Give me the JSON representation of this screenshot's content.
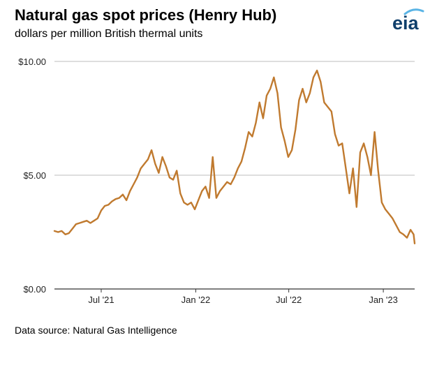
{
  "title": "Natural gas spot prices (Henry Hub)",
  "subtitle": "dollars per million British thermal units",
  "source": "Data source: Natural Gas Intelligence",
  "logo": {
    "text": "eia",
    "icon": "eia-logo-icon",
    "color": "#0f3f6b",
    "arc_color": "#5ab4e5"
  },
  "chart_data": {
    "type": "line",
    "title": "Natural gas spot prices (Henry Hub)",
    "subtitle": "dollars per million British thermal units",
    "xlabel": "",
    "ylabel": "",
    "x_range": [
      "2021-04-01",
      "2023-03-03"
    ],
    "ylim": [
      0,
      10
    ],
    "y_ticks": [
      {
        "value": 0,
        "label": "$0.00"
      },
      {
        "value": 5,
        "label": "$5.00"
      },
      {
        "value": 10,
        "label": "$10.00"
      }
    ],
    "x_ticks": [
      {
        "date": "2021-07-01",
        "label": "Jul '21"
      },
      {
        "date": "2022-01-01",
        "label": "Jan '22"
      },
      {
        "date": "2022-07-01",
        "label": "Jul '22"
      },
      {
        "date": "2023-01-01",
        "label": "Jan '23"
      }
    ],
    "grid": "horizontal",
    "color": "#c07a2f",
    "series": [
      {
        "values": [
          [
            "2021-04-01",
            2.55
          ],
          [
            "2021-04-08",
            2.5
          ],
          [
            "2021-04-15",
            2.55
          ],
          [
            "2021-04-22",
            2.4
          ],
          [
            "2021-04-29",
            2.45
          ],
          [
            "2021-05-06",
            2.65
          ],
          [
            "2021-05-13",
            2.85
          ],
          [
            "2021-05-20",
            2.9
          ],
          [
            "2021-05-27",
            2.95
          ],
          [
            "2021-06-03",
            3.0
          ],
          [
            "2021-06-10",
            2.9
          ],
          [
            "2021-06-17",
            3.0
          ],
          [
            "2021-06-24",
            3.1
          ],
          [
            "2021-07-01",
            3.45
          ],
          [
            "2021-07-08",
            3.65
          ],
          [
            "2021-07-15",
            3.7
          ],
          [
            "2021-07-22",
            3.85
          ],
          [
            "2021-07-29",
            3.95
          ],
          [
            "2021-08-05",
            4.0
          ],
          [
            "2021-08-12",
            4.15
          ],
          [
            "2021-08-19",
            3.9
          ],
          [
            "2021-08-26",
            4.3
          ],
          [
            "2021-09-02",
            4.6
          ],
          [
            "2021-09-09",
            4.9
          ],
          [
            "2021-09-16",
            5.3
          ],
          [
            "2021-09-23",
            5.5
          ],
          [
            "2021-09-30",
            5.7
          ],
          [
            "2021-10-07",
            6.1
          ],
          [
            "2021-10-14",
            5.5
          ],
          [
            "2021-10-21",
            5.1
          ],
          [
            "2021-10-28",
            5.8
          ],
          [
            "2021-11-04",
            5.4
          ],
          [
            "2021-11-11",
            4.9
          ],
          [
            "2021-11-18",
            4.8
          ],
          [
            "2021-11-25",
            5.2
          ],
          [
            "2021-12-02",
            4.2
          ],
          [
            "2021-12-09",
            3.8
          ],
          [
            "2021-12-16",
            3.7
          ],
          [
            "2021-12-23",
            3.8
          ],
          [
            "2021-12-30",
            3.5
          ],
          [
            "2022-01-06",
            3.9
          ],
          [
            "2022-01-13",
            4.3
          ],
          [
            "2022-01-20",
            4.5
          ],
          [
            "2022-01-27",
            4.0
          ],
          [
            "2022-02-03",
            5.8
          ],
          [
            "2022-02-10",
            4.0
          ],
          [
            "2022-02-17",
            4.3
          ],
          [
            "2022-02-24",
            4.5
          ],
          [
            "2022-03-03",
            4.7
          ],
          [
            "2022-03-10",
            4.6
          ],
          [
            "2022-03-17",
            4.9
          ],
          [
            "2022-03-24",
            5.3
          ],
          [
            "2022-03-31",
            5.6
          ],
          [
            "2022-04-07",
            6.2
          ],
          [
            "2022-04-14",
            6.9
          ],
          [
            "2022-04-21",
            6.7
          ],
          [
            "2022-04-28",
            7.3
          ],
          [
            "2022-05-05",
            8.2
          ],
          [
            "2022-05-12",
            7.5
          ],
          [
            "2022-05-19",
            8.5
          ],
          [
            "2022-05-26",
            8.8
          ],
          [
            "2022-06-02",
            9.3
          ],
          [
            "2022-06-09",
            8.6
          ],
          [
            "2022-06-16",
            7.1
          ],
          [
            "2022-06-23",
            6.5
          ],
          [
            "2022-06-30",
            5.8
          ],
          [
            "2022-07-07",
            6.1
          ],
          [
            "2022-07-14",
            7.0
          ],
          [
            "2022-07-21",
            8.3
          ],
          [
            "2022-07-28",
            8.8
          ],
          [
            "2022-08-04",
            8.2
          ],
          [
            "2022-08-11",
            8.6
          ],
          [
            "2022-08-18",
            9.3
          ],
          [
            "2022-08-25",
            9.6
          ],
          [
            "2022-09-01",
            9.1
          ],
          [
            "2022-09-08",
            8.2
          ],
          [
            "2022-09-15",
            8.0
          ],
          [
            "2022-09-22",
            7.8
          ],
          [
            "2022-09-29",
            6.8
          ],
          [
            "2022-10-06",
            6.3
          ],
          [
            "2022-10-13",
            6.4
          ],
          [
            "2022-10-20",
            5.3
          ],
          [
            "2022-10-27",
            4.2
          ],
          [
            "2022-11-03",
            5.3
          ],
          [
            "2022-11-10",
            3.6
          ],
          [
            "2022-11-17",
            6.0
          ],
          [
            "2022-11-24",
            6.4
          ],
          [
            "2022-12-01",
            5.8
          ],
          [
            "2022-12-08",
            5.0
          ],
          [
            "2022-12-15",
            6.9
          ],
          [
            "2022-12-22",
            5.2
          ],
          [
            "2022-12-29",
            3.8
          ],
          [
            "2023-01-05",
            3.5
          ],
          [
            "2023-01-12",
            3.3
          ],
          [
            "2023-01-19",
            3.1
          ],
          [
            "2023-01-26",
            2.8
          ],
          [
            "2023-02-02",
            2.5
          ],
          [
            "2023-02-09",
            2.4
          ],
          [
            "2023-02-16",
            2.25
          ],
          [
            "2023-02-23",
            2.6
          ],
          [
            "2023-03-01",
            2.4
          ],
          [
            "2023-03-03",
            2.0
          ]
        ]
      }
    ]
  }
}
